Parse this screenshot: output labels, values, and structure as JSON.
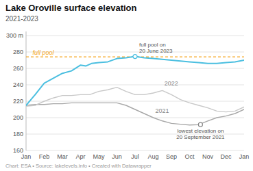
{
  "chart_data": {
    "type": "line",
    "title": "Lake Oroville surface elevation",
    "subtitle": "2021-2023",
    "source": "Chart: ESA • Source: lakelevels.info • Created with Datawrapper",
    "xlim": [
      0,
      12
    ],
    "xticks": [
      {
        "value": 0,
        "label": "Jan"
      },
      {
        "value": 1,
        "label": "Feb"
      },
      {
        "value": 2,
        "label": "Mar"
      },
      {
        "value": 3,
        "label": "Apr"
      },
      {
        "value": 4,
        "label": "May"
      },
      {
        "value": 5,
        "label": "Jun"
      },
      {
        "value": 6,
        "label": "Jul"
      },
      {
        "value": 7,
        "label": "Aug"
      },
      {
        "value": 8,
        "label": "Sep"
      },
      {
        "value": 9,
        "label": "Oct"
      },
      {
        "value": 10,
        "label": "Nov"
      },
      {
        "value": 11,
        "label": "Dec"
      },
      {
        "value": 12,
        "label": "Jan"
      }
    ],
    "ylim": [
      160,
      305
    ],
    "yticks": [
      160,
      180,
      200,
      220,
      240,
      260,
      280,
      {
        "value": 300,
        "label": "300 m"
      }
    ],
    "grid": true,
    "reference_line": {
      "value": 274.0,
      "label": "full pool",
      "color": "#f5a623",
      "line_style": "dashed"
    },
    "series": [
      {
        "name": "2021",
        "color": "#a8a8a8",
        "x": [
          0,
          0.5,
          1.0,
          1.5,
          2.0,
          2.5,
          3.0,
          3.5,
          4.0,
          4.5,
          5.0,
          5.5,
          6.0,
          6.5,
          7.0,
          7.5,
          8.0,
          8.5,
          9.0,
          9.5,
          10.0,
          10.5,
          11.0,
          11.5,
          12.0
        ],
        "values": [
          215,
          216,
          216,
          217,
          217,
          218,
          218,
          218,
          218,
          218,
          218,
          215,
          210,
          205,
          200,
          196,
          193,
          192,
          191,
          191.5,
          196,
          200,
          202,
          205,
          210
        ]
      },
      {
        "name": "2022",
        "color": "#c8c8c8",
        "x": [
          0,
          0.5,
          1.0,
          1.5,
          2.0,
          2.5,
          3.0,
          3.5,
          4.0,
          4.5,
          5.0,
          5.5,
          6.0,
          6.5,
          7.0,
          7.5,
          8.0,
          8.5,
          9.0,
          9.5,
          10.0,
          10.5,
          11.0,
          11.5,
          12.0
        ],
        "values": [
          214,
          215,
          220,
          224,
          227,
          227,
          228,
          228,
          232,
          234,
          237,
          232,
          228,
          228,
          230,
          233,
          228,
          222,
          218,
          215,
          212,
          208,
          207,
          208,
          213
        ]
      },
      {
        "color": "#4bbfe0",
        "x": [
          0,
          0.5,
          1.0,
          1.5,
          2.0,
          2.5,
          3.0,
          3.3,
          3.6,
          4.0,
          4.5,
          5.0,
          5.5,
          6.0,
          6.5,
          7.0,
          7.5,
          8.0,
          8.5,
          9.0,
          9.5,
          10.0,
          10.5,
          11.0,
          11.5,
          12.0
        ],
        "values": [
          215,
          228,
          242,
          248,
          254,
          257,
          264,
          263,
          266,
          267,
          268,
          272,
          273,
          274.5,
          273,
          272,
          271,
          270,
          269,
          268,
          267,
          266,
          266,
          267,
          268,
          270
        ]
      }
    ],
    "annotations": [
      {
        "text": "full pool on\n20 June 2023",
        "x": 6.0,
        "y": 274.5
      },
      {
        "text": "lowest elevation on\n20 September 2021",
        "x": 9.6,
        "y": 191.5
      }
    ]
  }
}
